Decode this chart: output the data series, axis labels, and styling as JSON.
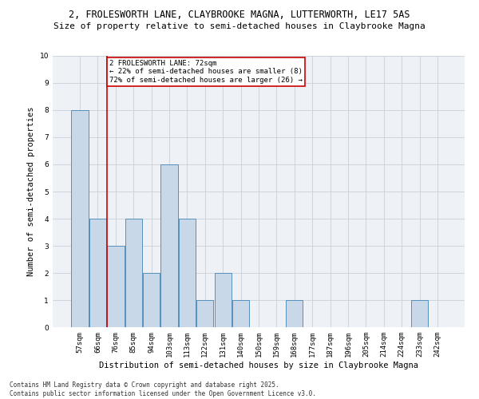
{
  "title1": "2, FROLESWORTH LANE, CLAYBROOKE MAGNA, LUTTERWORTH, LE17 5AS",
  "title2": "Size of property relative to semi-detached houses in Claybrooke Magna",
  "xlabel": "Distribution of semi-detached houses by size in Claybrooke Magna",
  "ylabel": "Number of semi-detached properties",
  "categories": [
    "57sqm",
    "66sqm",
    "76sqm",
    "85sqm",
    "94sqm",
    "103sqm",
    "113sqm",
    "122sqm",
    "131sqm",
    "140sqm",
    "150sqm",
    "159sqm",
    "168sqm",
    "177sqm",
    "187sqm",
    "196sqm",
    "205sqm",
    "214sqm",
    "224sqm",
    "233sqm",
    "242sqm"
  ],
  "values": [
    8,
    4,
    3,
    4,
    2,
    6,
    4,
    1,
    2,
    1,
    0,
    0,
    1,
    0,
    0,
    0,
    0,
    0,
    0,
    1,
    0
  ],
  "bar_color": "#c8d8e8",
  "bar_edge_color": "#5590bb",
  "vline_x_index": 1.5,
  "vline_color": "#cc0000",
  "annotation_text": "2 FROLESWORTH LANE: 72sqm\n← 22% of semi-detached houses are smaller (8)\n72% of semi-detached houses are larger (26) →",
  "annotation_box_edge": "#cc0000",
  "ylim": [
    0,
    10
  ],
  "yticks": [
    0,
    1,
    2,
    3,
    4,
    5,
    6,
    7,
    8,
    9,
    10
  ],
  "grid_color": "#c8d0d8",
  "bg_color": "#eef2f6",
  "footer": "Contains HM Land Registry data © Crown copyright and database right 2025.\nContains public sector information licensed under the Open Government Licence v3.0.",
  "title1_fontsize": 8.5,
  "title2_fontsize": 8.0,
  "xlabel_fontsize": 7.5,
  "ylabel_fontsize": 7.5,
  "tick_fontsize": 6.5,
  "footer_fontsize": 5.5,
  "ann_fontsize": 6.5
}
